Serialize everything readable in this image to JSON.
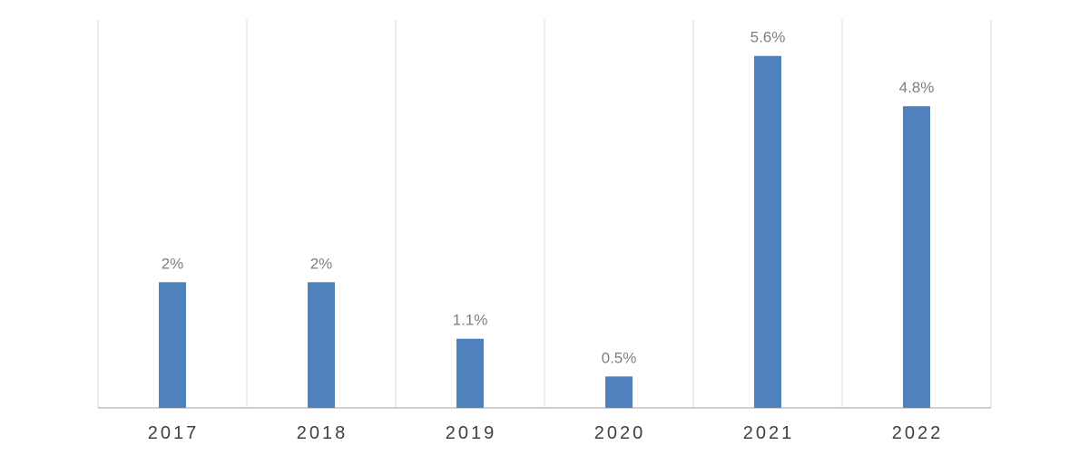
{
  "chart_data": {
    "type": "bar",
    "categories": [
      "2017",
      "2018",
      "2019",
      "2020",
      "2021",
      "2022"
    ],
    "values": [
      2,
      2,
      1.1,
      0.5,
      5.6,
      4.8
    ],
    "data_labels": [
      "2%",
      "2%",
      "1.1%",
      "0.5%",
      "5.6%",
      "4.8%"
    ],
    "ylim": [
      0,
      6
    ],
    "grid": "vertical category separators",
    "colors": {
      "bar": "#4f81bd",
      "label": "#7f7f7f",
      "tick": "#404040",
      "grid": "#d9d9d9"
    }
  }
}
